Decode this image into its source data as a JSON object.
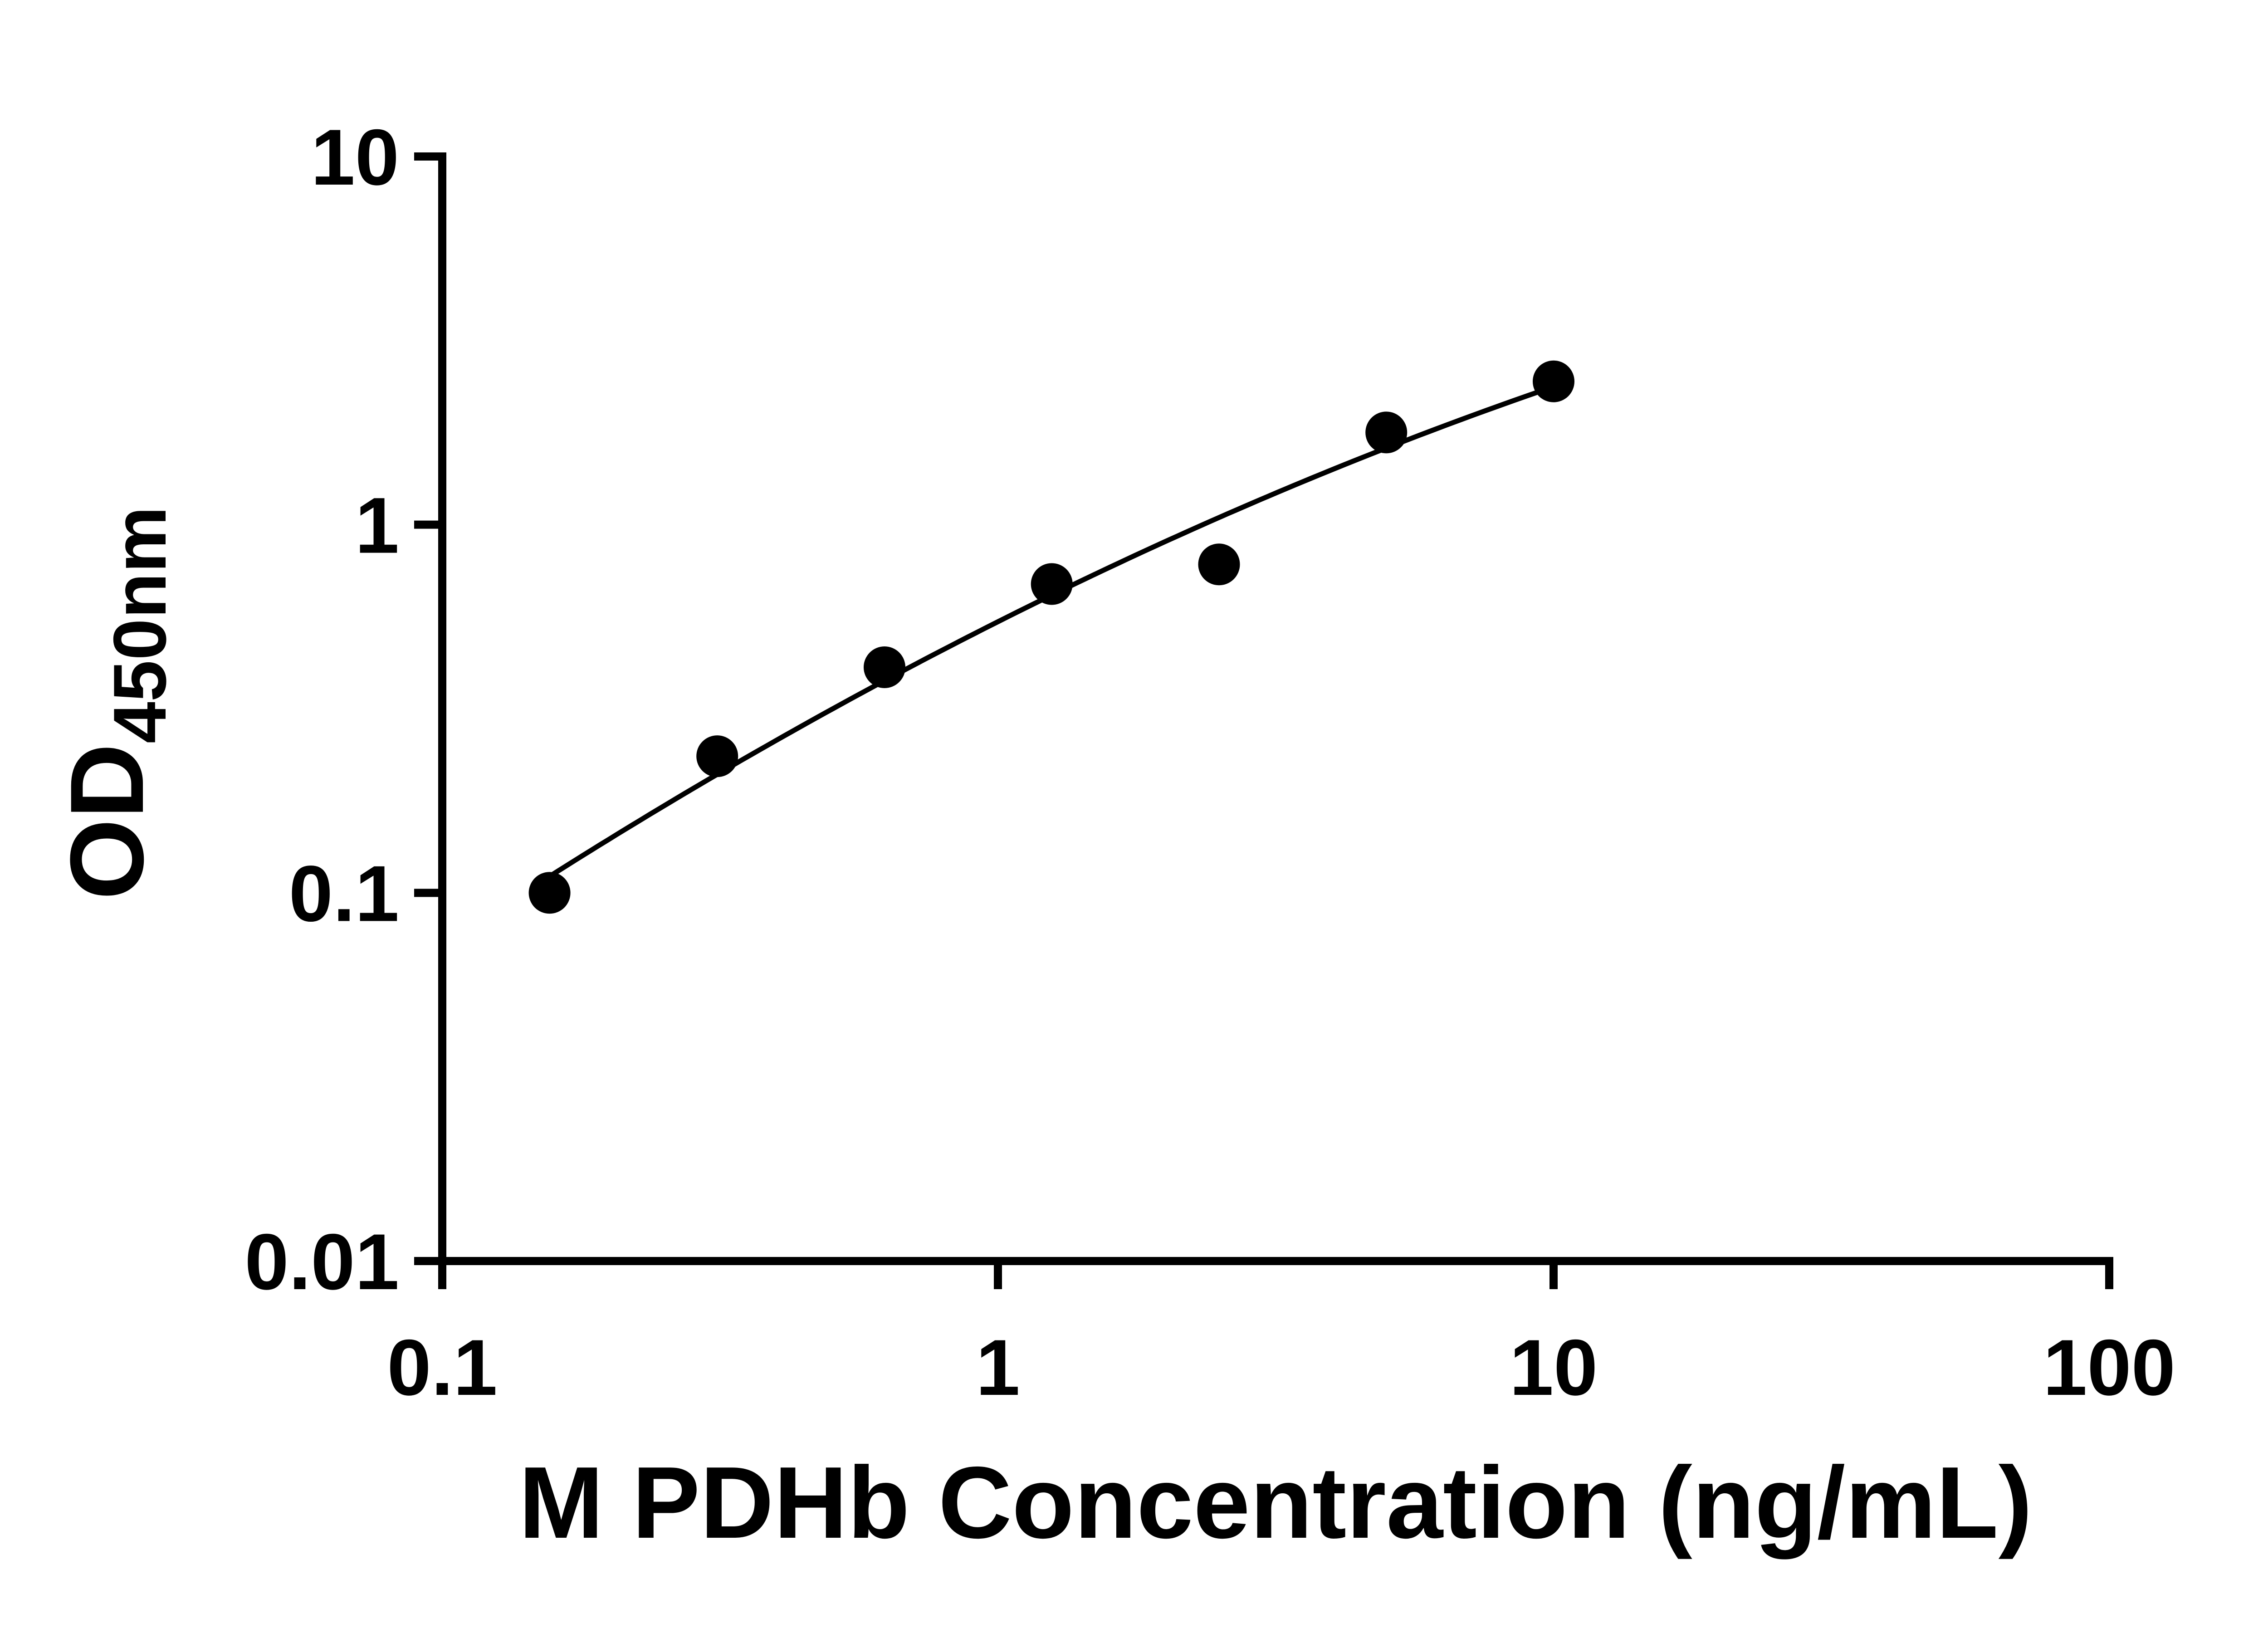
{
  "chart_data": {
    "type": "scatter",
    "title": "",
    "xlabel": "M PDHb Concentration (ng/mL)",
    "ylabel_main": "OD",
    "ylabel_sub": "450nm",
    "x_scale": "log",
    "y_scale": "log",
    "xlim": [
      0.1,
      100
    ],
    "ylim": [
      0.01,
      10
    ],
    "x_ticks": [
      0.1,
      1,
      10,
      100
    ],
    "x_tick_labels": [
      "0.1",
      "1",
      "10",
      "100"
    ],
    "y_ticks": [
      0.01,
      0.1,
      1,
      10
    ],
    "y_tick_labels": [
      "0.01",
      "0.1",
      "1",
      "10"
    ],
    "points": [
      {
        "x": 0.156,
        "y": 0.1
      },
      {
        "x": 0.3125,
        "y": 0.235
      },
      {
        "x": 0.625,
        "y": 0.41
      },
      {
        "x": 1.25,
        "y": 0.69
      },
      {
        "x": 2.5,
        "y": 0.78
      },
      {
        "x": 5.0,
        "y": 1.78
      },
      {
        "x": 10.0,
        "y": 2.45
      }
    ],
    "trend_line": true,
    "marker_color": "#000000",
    "line_color": "#000000",
    "axis_color": "#000000",
    "background_color": "#ffffff",
    "grid": false,
    "legend": false
  }
}
